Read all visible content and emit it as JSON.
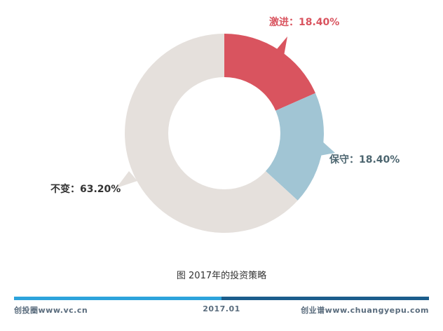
{
  "chart_data": {
    "type": "pie",
    "variant": "donut",
    "slices": [
      {
        "name": "激进",
        "value": 18.4,
        "label": "激进：18.40%",
        "color": "#d9545f"
      },
      {
        "name": "保守",
        "value": 18.4,
        "label": "保守：18.40%",
        "color": "#a1c5d4"
      },
      {
        "name": "不变",
        "value": 63.2,
        "label": "不变：63.20%",
        "color": "#e5e0dc"
      }
    ],
    "caption": "图 2017年的投资策略",
    "label_colors": {
      "激进": "#d9545f",
      "保守": "#4d6670",
      "不变": "#333333"
    }
  },
  "footer": {
    "left": "创投圈www.vc.cn",
    "center": "2017.01",
    "right": "创业谱www.chuangyepu.com",
    "bar_light_color": "#2ca3dc",
    "bar_dark_color": "#1b5d8c"
  }
}
